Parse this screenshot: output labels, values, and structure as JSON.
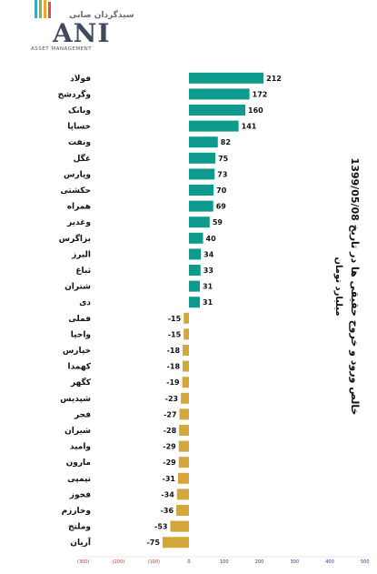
{
  "logo": {
    "top_text": "سیدگردان صانی",
    "brand": "ANI",
    "sub_text": "ASSET MANAGEMENT"
  },
  "chart_data": {
    "type": "bar",
    "orientation": "horizontal",
    "title": "خالص ورود و خروج حقیقی ها در تاریخ 1399/05/08",
    "subtitle": "میلیارد تومان",
    "categories": [
      "فولاد",
      "وگردشح",
      "وبانک",
      "خساپا",
      "ونفت",
      "غگل",
      "وپارس",
      "حکشتی",
      "همراه",
      "وغدیر",
      "بزاگرس",
      "البرز",
      "ثباغ",
      "شتران",
      "دی",
      "فملی",
      "واحیا",
      "خپارس",
      "کهمدا",
      "کگهر",
      "شپدیس",
      "فجر",
      "شیران",
      "وامید",
      "مارون",
      "تپمپی",
      "فخوز",
      "وخارزم",
      "وملتح",
      "آریان"
    ],
    "values": [
      212,
      172,
      160,
      141,
      82,
      75,
      73,
      70,
      69,
      59,
      40,
      34,
      33,
      31,
      31,
      -15,
      -15,
      -18,
      -18,
      -19,
      -23,
      -27,
      -28,
      -29,
      -29,
      -31,
      -34,
      -36,
      -53,
      -75
    ],
    "xlim": [
      -300,
      500
    ],
    "xticks": [
      -300,
      -200,
      -100,
      0,
      100,
      200,
      300,
      400,
      500
    ],
    "xtick_labels": [
      "(300)",
      "(200)",
      "(100)",
      "0",
      "100",
      "200",
      "300",
      "400",
      "500"
    ],
    "colors": {
      "positive": "#0e9b8e",
      "negative": "#d3a739",
      "negative_tick": "#c0392b",
      "positive_tick": "#1f3a8a"
    },
    "grid": false,
    "legend": "none"
  }
}
